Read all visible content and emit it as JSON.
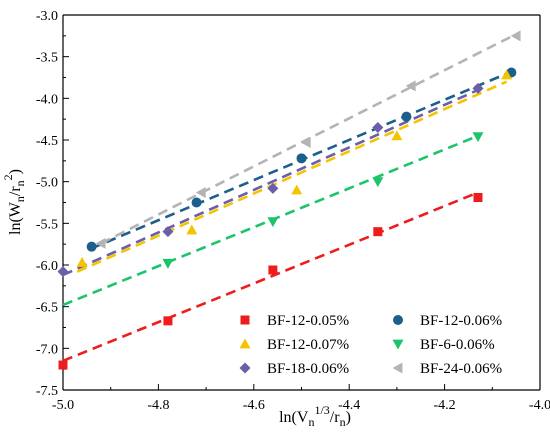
{
  "chart_data": {
    "type": "scatter",
    "title": "",
    "xlabel": "ln(V_n^{1/3}/r_n)",
    "ylabel": "ln(W_n/r_n^2)",
    "xlim": [
      -5.0,
      -4.0
    ],
    "ylim": [
      -7.5,
      -3.0
    ],
    "x_ticks": [
      -5.0,
      -4.8,
      -4.6,
      -4.4,
      -4.2,
      -4.0
    ],
    "x_tick_labels": [
      "-5.0",
      "-4.8",
      "-4.6",
      "-4.4",
      "-4.2",
      "-4.0"
    ],
    "y_ticks": [
      -3.0,
      -3.5,
      -4.0,
      -4.5,
      -5.0,
      -5.5,
      -6.0,
      -6.5,
      -7.0,
      -7.5
    ],
    "y_tick_labels": [
      "-3.0",
      "-3.5",
      "-4.0",
      "-4.5",
      "-5.0",
      "-5.5",
      "-6.0",
      "-6.5",
      "-7.0",
      "-7.5"
    ],
    "grid": false,
    "legend_position": "bottom-right",
    "series": [
      {
        "name": "BF-12-0.05%",
        "marker": "square",
        "color": "#ee1c1c",
        "x": [
          -5.0,
          -4.78,
          -4.56,
          -4.34,
          -4.13
        ],
        "y": [
          -7.2,
          -6.67,
          -6.06,
          -5.6,
          -5.19
        ],
        "fit": {
          "x": [
            -5.0,
            -4.13
          ],
          "y": [
            -7.15,
            -5.13
          ]
        }
      },
      {
        "name": "BF-12-0.06%",
        "marker": "circle",
        "color": "#1c5f8c",
        "x": [
          -4.94,
          -4.72,
          -4.5,
          -4.28,
          -4.06
        ],
        "y": [
          -5.78,
          -5.25,
          -4.72,
          -4.22,
          -3.69
        ],
        "fit": {
          "x": [
            -4.94,
            -4.06
          ],
          "y": [
            -5.8,
            -3.68
          ]
        }
      },
      {
        "name": "BF-12-0.07%",
        "marker": "triangle-up",
        "color": "#f5c400",
        "x": [
          -4.96,
          -4.73,
          -4.51,
          -4.3,
          -4.07
        ],
        "y": [
          -5.97,
          -5.58,
          -5.1,
          -4.45,
          -3.72
        ],
        "fit": {
          "x": [
            -4.97,
            -4.07
          ],
          "y": [
            -6.08,
            -3.8
          ]
        }
      },
      {
        "name": "BF-6-0.06%",
        "marker": "triangle-down",
        "color": "#1dc46a",
        "x": [
          -4.78,
          -4.56,
          -4.34,
          -4.13
        ],
        "y": [
          -5.98,
          -5.48,
          -5.0,
          -4.46
        ],
        "fit": {
          "x": [
            -5.0,
            -4.13
          ],
          "y": [
            -6.48,
            -4.45
          ]
        }
      },
      {
        "name": "BF-18-0.06%",
        "marker": "diamond",
        "color": "#6a5fa8",
        "x": [
          -5.0,
          -4.78,
          -4.56,
          -4.34,
          -4.13
        ],
        "y": [
          -6.08,
          -5.6,
          -5.08,
          -4.35,
          -3.88
        ],
        "fit": {
          "x": [
            -5.0,
            -4.13
          ],
          "y": [
            -6.12,
            -3.9
          ]
        }
      },
      {
        "name": "BF-24-0.06%",
        "marker": "triangle-left",
        "color": "#b4b4b4",
        "x": [
          -4.92,
          -4.71,
          -4.49,
          -4.27,
          -4.05
        ],
        "y": [
          -5.74,
          -5.13,
          -4.53,
          -3.85,
          -3.25
        ],
        "fit": {
          "x": [
            -4.92,
            -4.05
          ],
          "y": [
            -5.74,
            -3.23
          ]
        }
      }
    ],
    "legend_columns": [
      [
        "BF-12-0.05%",
        "BF-12-0.07%",
        "BF-18-0.06%"
      ],
      [
        "BF-12-0.06%",
        "BF-6-0.06%",
        "BF-24-0.06%"
      ]
    ]
  }
}
